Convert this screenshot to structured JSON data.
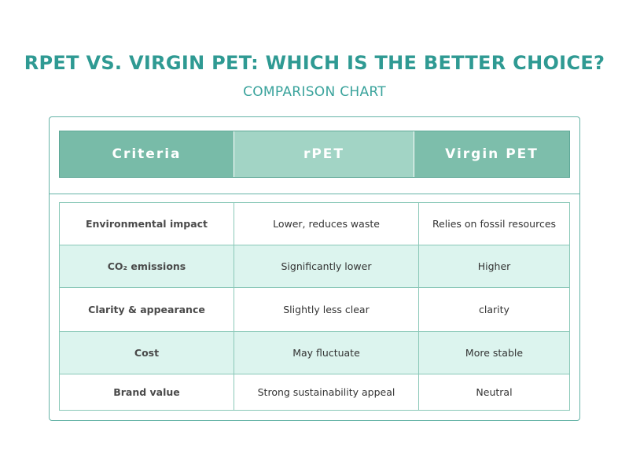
{
  "header": {
    "title": "RPET VS. VIRGIN PET: WHICH IS THE BETTER CHOICE?",
    "subtitle": "COMPARISON CHART"
  },
  "table": {
    "columns": [
      "Criteria",
      "rPET",
      "Virgin PET"
    ],
    "rows": [
      {
        "criteria": "Environmental impact",
        "rpet": "Lower, reduces waste",
        "virgin": "Relies on fossil resources"
      },
      {
        "criteria": "CO₂ emissions",
        "rpet": "Significantly lower",
        "virgin": "Higher"
      },
      {
        "criteria": "Clarity & appearance",
        "rpet": "Slightly less clear",
        "virgin": "clarity"
      },
      {
        "criteria": "Cost",
        "rpet": "May fluctuate",
        "virgin": "More stable"
      },
      {
        "criteria": "Brand value",
        "rpet": "Strong sustainability appeal",
        "virgin": "Neutral"
      }
    ]
  },
  "colors": {
    "title": "#2f9a93",
    "header_criteria": "#78bba8",
    "header_rpet": "#a2d4c5",
    "header_virgin": "#7dbeab",
    "row_alt": "#dcf4ee",
    "border": "#8ac8b8"
  }
}
